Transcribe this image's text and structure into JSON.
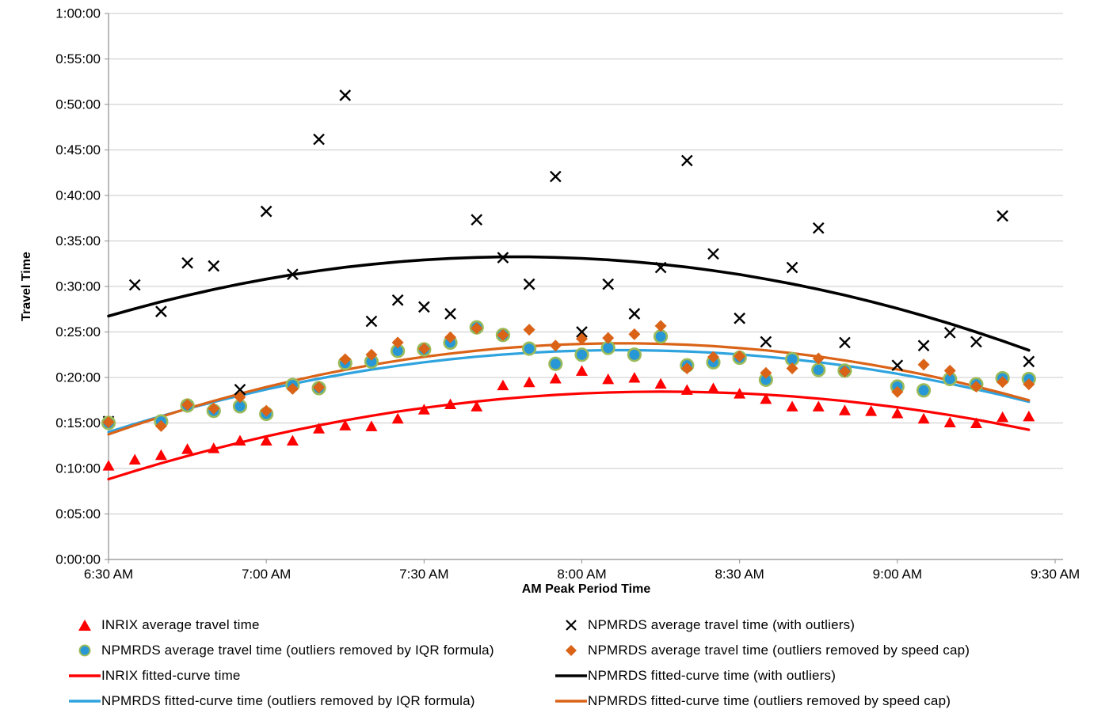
{
  "chart_data": {
    "type": "scatter",
    "title": "",
    "xlabel": "AM Peak Period Time",
    "ylabel": "Travel Time",
    "x_tick_labels": [
      "6:30 AM",
      "7:00 AM",
      "7:30 AM",
      "8:00 AM",
      "8:30 AM",
      "9:00 AM",
      "9:30 AM"
    ],
    "y_tick_labels": [
      "0:00:00",
      "0:05:00",
      "0:10:00",
      "0:15:00",
      "0:20:00",
      "0:25:00",
      "0:30:00",
      "0:35:00",
      "0:40:00",
      "0:45:00",
      "0:50:00",
      "0:55:00",
      "1:00:00"
    ],
    "ylim": [
      "0:00:00",
      "1:00:00"
    ],
    "x_range_minutes": 180,
    "grid": "horizontal-only",
    "legend_position": "bottom",
    "times": [
      "6:30 AM",
      "6:35 AM",
      "6:40 AM",
      "6:45 AM",
      "6:50 AM",
      "6:55 AM",
      "7:00 AM",
      "7:05 AM",
      "7:10 AM",
      "7:15 AM",
      "7:20 AM",
      "7:25 AM",
      "7:30 AM",
      "7:35 AM",
      "7:40 AM",
      "7:45 AM",
      "7:50 AM",
      "7:55 AM",
      "8:00 AM",
      "8:05 AM",
      "8:10 AM",
      "8:15 AM",
      "8:20 AM",
      "8:25 AM",
      "8:30 AM",
      "8:35 AM",
      "8:40 AM",
      "8:45 AM",
      "8:50 AM",
      "8:55 AM",
      "9:00 AM",
      "9:05 AM",
      "9:10 AM",
      "9:15 AM",
      "9:20 AM",
      "9:25 AM"
    ],
    "series": [
      {
        "id": "inrix-average",
        "name": "INRIX average travel time",
        "kind": "scatter",
        "marker": "triangle",
        "color": "#FF0000",
        "values": [
          "0:10:20",
          "0:11:00",
          "0:11:30",
          "0:12:10",
          "0:12:15",
          "0:13:05",
          "0:13:05",
          "0:13:05",
          "0:14:25",
          "0:14:45",
          "0:14:40",
          "0:15:30",
          "0:16:30",
          "0:17:05",
          "0:16:50",
          "0:19:10",
          "0:19:30",
          "0:19:55",
          "0:20:45",
          "0:19:50",
          "0:20:00",
          "0:19:20",
          "0:18:40",
          "0:18:50",
          "0:18:15",
          "0:17:40",
          "0:16:50",
          "0:16:50",
          "0:16:25",
          "0:16:20",
          "0:16:05",
          "0:15:30",
          "0:15:05",
          "0:15:00",
          "0:15:40",
          "0:15:45"
        ]
      },
      {
        "id": "npmrds-average-with-outliers",
        "name": "NPMRDS average travel time (with outliers)",
        "kind": "scatter",
        "marker": "x",
        "color": "#000000",
        "values": [
          "0:15:10",
          "0:30:10",
          "0:27:15",
          "0:32:35",
          "0:32:15",
          "0:18:40",
          "0:38:15",
          "0:31:20",
          "0:46:10",
          "0:51:00",
          "0:26:10",
          "0:28:30",
          "0:27:45",
          "0:27:00",
          "0:37:20",
          "0:33:10",
          "0:30:15",
          "0:42:05",
          "0:25:00",
          "0:30:15",
          "0:27:00",
          "0:32:05",
          "0:43:50",
          "0:33:35",
          "0:26:30",
          "0:23:55",
          "0:32:05",
          "0:36:25",
          "0:23:50",
          null,
          "0:21:20",
          "0:23:30",
          "0:24:55",
          "0:23:55",
          "0:37:45",
          "0:21:45"
        ]
      },
      {
        "id": "npmrds-average-iqr",
        "name": "NPMRDS average travel time (outliers removed by IQR formula)",
        "kind": "scatter",
        "marker": "circle",
        "color": "#2797D6",
        "marker_edge": "#9BBB59",
        "values": [
          "0:15:00",
          null,
          "0:15:10",
          "0:16:55",
          "0:16:20",
          "0:16:50",
          "0:16:00",
          "0:19:10",
          "0:18:50",
          "0:21:35",
          "0:21:45",
          "0:22:55",
          "0:23:05",
          "0:23:50",
          "0:25:30",
          "0:24:40",
          "0:23:10",
          "0:21:30",
          "0:22:30",
          "0:23:15",
          "0:22:30",
          "0:24:30",
          "0:21:20",
          "0:21:40",
          "0:22:10",
          "0:19:45",
          "0:22:00",
          "0:20:50",
          "0:20:45",
          null,
          "0:19:00",
          "0:18:35",
          "0:19:50",
          "0:19:15",
          "0:19:55",
          "0:19:50"
        ]
      },
      {
        "id": "npmrds-average-speedcap",
        "name": "NPMRDS average travel time (outliers removed by speed cap)",
        "kind": "scatter",
        "marker": "diamond",
        "color": "#DA6317",
        "values": [
          "0:15:05",
          null,
          "0:14:40",
          "0:17:00",
          "0:16:35",
          "0:17:50",
          "0:16:20",
          "0:18:45",
          "0:18:55",
          "0:22:00",
          "0:22:30",
          "0:23:50",
          "0:23:10",
          "0:24:25",
          "0:25:25",
          "0:24:40",
          "0:25:15",
          "0:23:30",
          "0:24:15",
          "0:24:20",
          "0:24:45",
          "0:25:40",
          "0:21:00",
          "0:22:15",
          "0:22:20",
          "0:20:30",
          "0:21:00",
          "0:22:05",
          "0:20:40",
          null,
          "0:18:25",
          "0:21:25",
          "0:20:45",
          "0:19:00",
          "0:19:30",
          "0:19:15"
        ]
      },
      {
        "id": "inrix-fitted",
        "name": "INRIX fitted-curve time",
        "kind": "line",
        "color": "#FF0000",
        "width": 3.2,
        "values_min": [
          8.83,
          9.72,
          10.57,
          11.37,
          12.13,
          12.85,
          13.53,
          14.16,
          14.74,
          15.29,
          15.79,
          16.25,
          16.66,
          17.03,
          17.36,
          17.65,
          17.89,
          18.09,
          18.24,
          18.35,
          18.42,
          18.44,
          18.43,
          18.36,
          18.26,
          18.11,
          17.92,
          17.68,
          17.41,
          17.08,
          16.72,
          16.31,
          15.86,
          15.37,
          14.83,
          14.25
        ]
      },
      {
        "id": "npmrds-fitted-with-outliers",
        "name": "NPMRDS fitted-curve time (with outliers)",
        "kind": "line",
        "color": "#000000",
        "width": 3.6,
        "values_min": [
          26.75,
          27.56,
          28.32,
          29.02,
          29.67,
          30.27,
          30.81,
          31.3,
          31.73,
          32.11,
          32.43,
          32.7,
          32.92,
          33.08,
          33.19,
          33.25,
          33.25,
          33.19,
          33.09,
          32.93,
          32.71,
          32.44,
          32.12,
          31.74,
          31.31,
          30.82,
          30.28,
          29.69,
          29.04,
          28.34,
          27.58,
          26.77,
          25.91,
          24.99,
          24.02,
          22.99
        ]
      },
      {
        "id": "npmrds-fitted-iqr",
        "name": "NPMRDS fitted-curve time (outliers removed by IQR formula)",
        "kind": "line",
        "color": "#2FA3DE",
        "width": 3.2,
        "values_min": [
          14.0,
          14.9,
          15.75,
          16.56,
          17.31,
          18.02,
          18.69,
          19.3,
          19.87,
          20.39,
          20.87,
          21.29,
          21.67,
          22.0,
          22.29,
          22.52,
          22.71,
          22.86,
          22.95,
          23.0,
          23.0,
          22.95,
          22.86,
          22.72,
          22.53,
          22.29,
          22.01,
          21.68,
          21.3,
          20.88,
          20.41,
          19.89,
          19.32,
          18.7,
          18.04,
          17.33
        ]
      },
      {
        "id": "npmrds-fitted-speedcap",
        "name": "NPMRDS fitted-curve time (outliers removed by speed cap)",
        "kind": "line",
        "color": "#DA6317",
        "width": 3.2,
        "values_min": [
          13.75,
          14.75,
          15.69,
          16.59,
          17.43,
          18.22,
          18.95,
          19.63,
          20.27,
          20.84,
          21.37,
          21.84,
          22.27,
          22.63,
          22.95,
          23.22,
          23.43,
          23.59,
          23.69,
          23.75,
          23.75,
          23.7,
          23.6,
          23.44,
          23.23,
          22.98,
          22.66,
          22.3,
          21.88,
          21.41,
          20.89,
          20.32,
          19.69,
          19.01,
          18.28,
          17.5
        ]
      }
    ]
  },
  "legend": {
    "left": [
      {
        "label": "INRIX average travel time",
        "marker": "triangle"
      },
      {
        "label": "NPMRDS average travel time (outliers removed by IQR formula)",
        "marker": "circle"
      },
      {
        "label": "INRIX fitted-curve time",
        "marker": "red-line"
      },
      {
        "label": "NPMRDS fitted-curve time (outliers removed by IQR formula)",
        "marker": "blue-line"
      }
    ],
    "right": [
      {
        "label": "NPMRDS average travel time (with outliers)",
        "marker": "x"
      },
      {
        "label": "NPMRDS average travel time (outliers removed by speed cap)",
        "marker": "diamond"
      },
      {
        "label": "NPMRDS fitted-curve time (with outliers)",
        "marker": "black-line"
      },
      {
        "label": "NPMRDS fitted-curve time (outliers removed by speed cap)",
        "marker": "orange-line"
      }
    ]
  },
  "colors": {
    "red": "#FF0000",
    "black": "#000000",
    "blue_marker": "#2797D6",
    "blue_marker_ring": "#9BBB59",
    "blue_line": "#2FA3DE",
    "orange": "#DA6317",
    "gridline": "#C8C8C8",
    "axis": "#8E8E8E"
  }
}
